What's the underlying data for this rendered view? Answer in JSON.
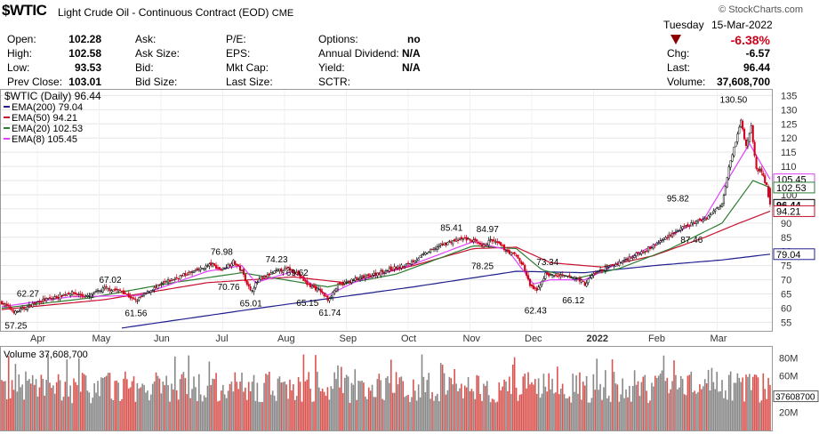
{
  "header": {
    "symbol": "$WTIC",
    "description": "Light Crude Oil - Continuous Contract (EOD)",
    "exchange": "CME",
    "source": "© StockCharts.com",
    "day": "Tuesday",
    "date": "15-Mar-2022",
    "change_pct": "-6.38%",
    "fields": [
      {
        "label": "Open:",
        "value": "102.28"
      },
      {
        "label": "High:",
        "value": "102.58"
      },
      {
        "label": "Low:",
        "value": "93.53"
      },
      {
        "label": "Prev Close:",
        "value": "103.01"
      },
      {
        "label": "Ask:",
        "value": ""
      },
      {
        "label": "Ask Size:",
        "value": ""
      },
      {
        "label": "Bid:",
        "value": ""
      },
      {
        "label": "Bid Size:",
        "value": ""
      },
      {
        "label": "P/E:",
        "value": ""
      },
      {
        "label": "EPS:",
        "value": ""
      },
      {
        "label": "Mkt Cap:",
        "value": ""
      },
      {
        "label": "Last Size:",
        "value": ""
      },
      {
        "label": "Options:",
        "value": "no"
      },
      {
        "label": "Annual Dividend:",
        "value": "N/A"
      },
      {
        "label": "Yield:",
        "value": "N/A"
      },
      {
        "label": "SCTR:",
        "value": ""
      },
      {
        "label": "Chg:",
        "value": "-6.57"
      },
      {
        "label": "Last:",
        "value": "96.44"
      },
      {
        "label": "Volume:",
        "value": "37,608,700"
      }
    ]
  },
  "colors": {
    "up": "#000000",
    "down": "#d0021b",
    "ema200": "#1f1f8f",
    "ema50": "#c8102e",
    "ema20": "#2e7d32",
    "ema8": "#e040fb",
    "vol_up": "#888888",
    "vol_down": "#d9534f"
  },
  "chart_data": {
    "type": "candlestick",
    "title": "$WTIC (Daily) 96.44",
    "legend": [
      {
        "name": "EMA(200) 79.04",
        "color": "#1f1f8f"
      },
      {
        "name": "EMA(50) 94.21",
        "color": "#c8102e"
      },
      {
        "name": "EMA(20) 102.53",
        "color": "#2e7d32"
      },
      {
        "name": "EMA(8) 105.45",
        "color": "#e040fb"
      }
    ],
    "x_ticks": [
      "Apr",
      "May",
      "Jun",
      "Jul",
      "Aug",
      "Sep",
      "Oct",
      "Nov",
      "Dec",
      "2022",
      "Feb",
      "Mar"
    ],
    "y_ticks": [
      "55",
      "60",
      "65",
      "70",
      "75",
      "80",
      "85",
      "90",
      "95",
      "100",
      "105",
      "110",
      "115",
      "120",
      "125",
      "130",
      "135"
    ],
    "ylim": [
      52,
      137
    ],
    "price_path": [
      [
        0,
        62.0
      ],
      [
        8,
        58.5
      ],
      [
        15,
        60.5
      ],
      [
        22,
        62.5
      ],
      [
        30,
        63.5
      ],
      [
        40,
        65.5
      ],
      [
        50,
        64.0
      ],
      [
        60,
        67.0
      ],
      [
        70,
        66.0
      ],
      [
        78,
        62.5
      ],
      [
        86,
        66.0
      ],
      [
        95,
        69.0
      ],
      [
        105,
        71.5
      ],
      [
        115,
        73.5
      ],
      [
        122,
        75.5
      ],
      [
        128,
        73.5
      ],
      [
        135,
        76.5
      ],
      [
        140,
        73.0
      ],
      [
        145,
        66.0
      ],
      [
        150,
        70.0
      ],
      [
        160,
        73.0
      ],
      [
        167,
        74.0
      ],
      [
        172,
        72.5
      ],
      [
        178,
        68.5
      ],
      [
        186,
        66.0
      ],
      [
        190,
        63.0
      ],
      [
        196,
        68.0
      ],
      [
        205,
        70.0
      ],
      [
        215,
        71.5
      ],
      [
        225,
        73.5
      ],
      [
        235,
        75.0
      ],
      [
        245,
        78.5
      ],
      [
        255,
        82.0
      ],
      [
        262,
        83.5
      ],
      [
        270,
        84.5
      ],
      [
        276,
        83.5
      ],
      [
        280,
        81.5
      ],
      [
        285,
        84.0
      ],
      [
        290,
        82.5
      ],
      [
        295,
        80.0
      ],
      [
        300,
        78.5
      ],
      [
        304,
        75.0
      ],
      [
        308,
        68.0
      ],
      [
        312,
        66.0
      ],
      [
        317,
        72.0
      ],
      [
        322,
        71.5
      ],
      [
        330,
        71.0
      ],
      [
        336,
        70.5
      ],
      [
        340,
        68.5
      ],
      [
        345,
        72.0
      ],
      [
        352,
        74.0
      ],
      [
        360,
        76.0
      ],
      [
        370,
        79.0
      ],
      [
        380,
        82.0
      ],
      [
        390,
        86.0
      ],
      [
        398,
        88.5
      ],
      [
        405,
        90.5
      ],
      [
        410,
        91.5
      ],
      [
        415,
        94.0
      ],
      [
        420,
        97.0
      ],
      [
        424,
        110.0
      ],
      [
        428,
        119.0
      ],
      [
        431,
        126.0
      ],
      [
        434,
        117.0
      ],
      [
        437,
        124.0
      ],
      [
        440,
        109.0
      ],
      [
        443,
        108.0
      ],
      [
        446,
        103.0
      ],
      [
        448,
        96.44
      ]
    ],
    "ema200_path": [
      [
        70,
        53.0
      ],
      [
        150,
        60.0
      ],
      [
        240,
        67.5
      ],
      [
        300,
        73.0
      ],
      [
        340,
        72.5
      ],
      [
        380,
        75.0
      ],
      [
        420,
        77.0
      ],
      [
        448,
        79.04
      ]
    ],
    "ema50_path": [
      [
        0,
        59.5
      ],
      [
        60,
        63.0
      ],
      [
        120,
        69.0
      ],
      [
        170,
        71.0
      ],
      [
        200,
        69.0
      ],
      [
        240,
        75.0
      ],
      [
        275,
        81.0
      ],
      [
        300,
        81.5
      ],
      [
        320,
        76.0
      ],
      [
        350,
        74.5
      ],
      [
        380,
        78.5
      ],
      [
        410,
        85.0
      ],
      [
        430,
        90.0
      ],
      [
        448,
        94.21
      ]
    ],
    "ema20_path": [
      [
        0,
        60.0
      ],
      [
        50,
        63.5
      ],
      [
        100,
        69.0
      ],
      [
        140,
        72.5
      ],
      [
        165,
        70.0
      ],
      [
        190,
        67.5
      ],
      [
        230,
        72.0
      ],
      [
        275,
        82.0
      ],
      [
        300,
        81.0
      ],
      [
        315,
        73.5
      ],
      [
        335,
        70.5
      ],
      [
        360,
        74.0
      ],
      [
        390,
        81.0
      ],
      [
        420,
        90.0
      ],
      [
        438,
        105.0
      ],
      [
        448,
        102.53
      ]
    ],
    "ema8_path": [
      [
        0,
        60.5
      ],
      [
        40,
        64.0
      ],
      [
        80,
        64.5
      ],
      [
        120,
        73.0
      ],
      [
        140,
        75.0
      ],
      [
        148,
        69.0
      ],
      [
        170,
        73.0
      ],
      [
        190,
        64.5
      ],
      [
        205,
        69.0
      ],
      [
        240,
        75.5
      ],
      [
        275,
        83.5
      ],
      [
        295,
        80.5
      ],
      [
        310,
        68.5
      ],
      [
        320,
        70.0
      ],
      [
        340,
        70.0
      ],
      [
        370,
        79.0
      ],
      [
        410,
        92.0
      ],
      [
        428,
        110.0
      ],
      [
        436,
        118.0
      ],
      [
        448,
        105.45
      ]
    ],
    "annotations": [
      {
        "label": "57.25",
        "x": 8,
        "y": 57.25,
        "pos": "below"
      },
      {
        "label": "62.27",
        "x": 15,
        "y": 62.27,
        "pos": "above"
      },
      {
        "label": "67.02",
        "x": 63,
        "y": 67.02,
        "pos": "above"
      },
      {
        "label": "61.56",
        "x": 78,
        "y": 61.56,
        "pos": "below"
      },
      {
        "label": "76.98",
        "x": 128,
        "y": 76.98,
        "pos": "above"
      },
      {
        "label": "70.76",
        "x": 132,
        "y": 70.76,
        "pos": "below"
      },
      {
        "label": "65.01",
        "x": 145,
        "y": 65.01,
        "pos": "below"
      },
      {
        "label": "74.23",
        "x": 160,
        "y": 74.23,
        "pos": "above"
      },
      {
        "label": "69.62",
        "x": 172,
        "y": 69.62,
        "pos": "above"
      },
      {
        "label": "65.15",
        "x": 178,
        "y": 65.15,
        "pos": "below"
      },
      {
        "label": "61.74",
        "x": 191,
        "y": 61.74,
        "pos": "below"
      },
      {
        "label": "85.41",
        "x": 262,
        "y": 85.41,
        "pos": "above"
      },
      {
        "label": "84.97",
        "x": 283,
        "y": 84.97,
        "pos": "above"
      },
      {
        "label": "78.25",
        "x": 280,
        "y": 78.25,
        "pos": "below"
      },
      {
        "label": "73.34",
        "x": 318,
        "y": 73.34,
        "pos": "above"
      },
      {
        "label": "62.43",
        "x": 311,
        "y": 62.43,
        "pos": "below"
      },
      {
        "label": "66.12",
        "x": 333,
        "y": 66.12,
        "pos": "below"
      },
      {
        "label": "95.82",
        "x": 394,
        "y": 95.82,
        "pos": "above"
      },
      {
        "label": "87.46",
        "x": 402,
        "y": 87.46,
        "pos": "below"
      },
      {
        "label": "130.50",
        "x": 425,
        "y": 130.5,
        "pos": "above"
      }
    ],
    "last_value_tags": [
      {
        "label": "105.45",
        "y": 105.45,
        "color": "#e040fb"
      },
      {
        "label": "102.53",
        "y": 102.53,
        "color": "#2e7d32"
      },
      {
        "label": "96.44",
        "y": 96.44,
        "color": "#000000"
      },
      {
        "label": "94.21",
        "y": 94.21,
        "color": "#c8102e"
      },
      {
        "label": "79.04",
        "y": 79.04,
        "color": "#1f1f8f"
      }
    ],
    "volume": {
      "label": "Volume 37,608,700",
      "y_ticks": [
        "80M",
        "60M",
        "40M",
        "20M"
      ],
      "last_tag": "37608700",
      "ylim": [
        0,
        92
      ]
    }
  }
}
